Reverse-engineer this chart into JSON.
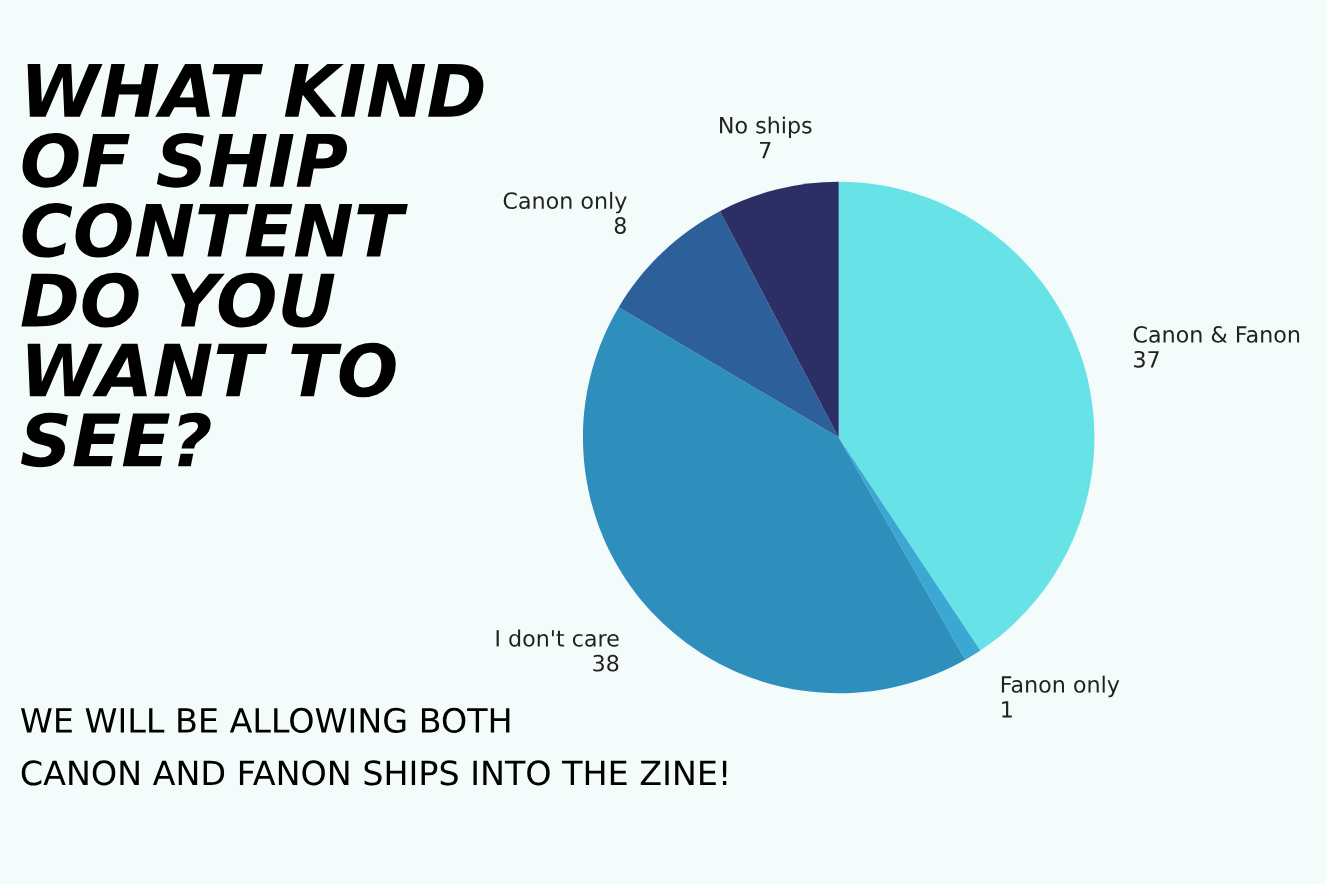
{
  "chart_data": {
    "type": "pie",
    "title": "WHAT KIND\nOF SHIP\nCONTENT\nDO YOU\nWANT TO\nSEE?",
    "categories": [
      "Canon & Fanon",
      "Fanon only",
      "I don't care",
      "Canon only",
      "No ships"
    ],
    "values": [
      37,
      1,
      38,
      8,
      7
    ],
    "colors": [
      "#67e3e8",
      "#3aa8d2",
      "#2e8fbd",
      "#2d5f9a",
      "#2c2f66"
    ],
    "data_labels": true,
    "annotations": [
      "WE WILL BE ALLOWING BOTH\nCANON AND FANON SHIPS INTO THE ZINE!"
    ]
  }
}
